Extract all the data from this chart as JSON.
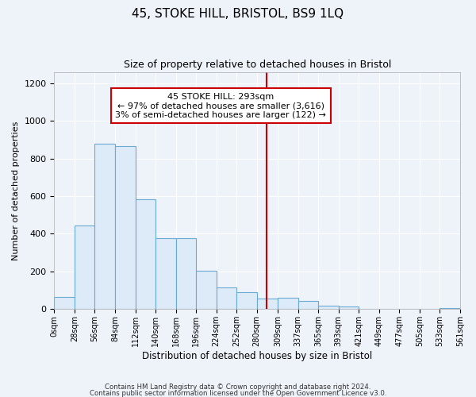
{
  "title": "45, STOKE HILL, BRISTOL, BS9 1LQ",
  "subtitle": "Size of property relative to detached houses in Bristol",
  "xlabel": "Distribution of detached houses by size in Bristol",
  "ylabel": "Number of detached properties",
  "bar_color": "#ddeaf7",
  "bar_edge_color": "#6aaad4",
  "vline_x": 293,
  "vline_color": "#cc0000",
  "annotation_text": "45 STOKE HILL: 293sqm\n← 97% of detached houses are smaller (3,616)\n3% of semi-detached houses are larger (122) →",
  "annotation_box_color": "white",
  "annotation_border_color": "#cc0000",
  "bin_edges": [
    0,
    28,
    56,
    84,
    112,
    140,
    168,
    196,
    224,
    252,
    280,
    309,
    337,
    365,
    393,
    421,
    449,
    477,
    505,
    533,
    561
  ],
  "bin_counts": [
    65,
    445,
    880,
    865,
    585,
    375,
    375,
    205,
    115,
    90,
    55,
    60,
    42,
    20,
    15,
    0,
    0,
    0,
    0,
    7
  ],
  "ylim": [
    0,
    1260
  ],
  "yticks": [
    0,
    200,
    400,
    600,
    800,
    1000,
    1200
  ],
  "footer_line1": "Contains HM Land Registry data © Crown copyright and database right 2024.",
  "footer_line2": "Contains public sector information licensed under the Open Government Licence v3.0.",
  "background_color": "#eef2f9"
}
